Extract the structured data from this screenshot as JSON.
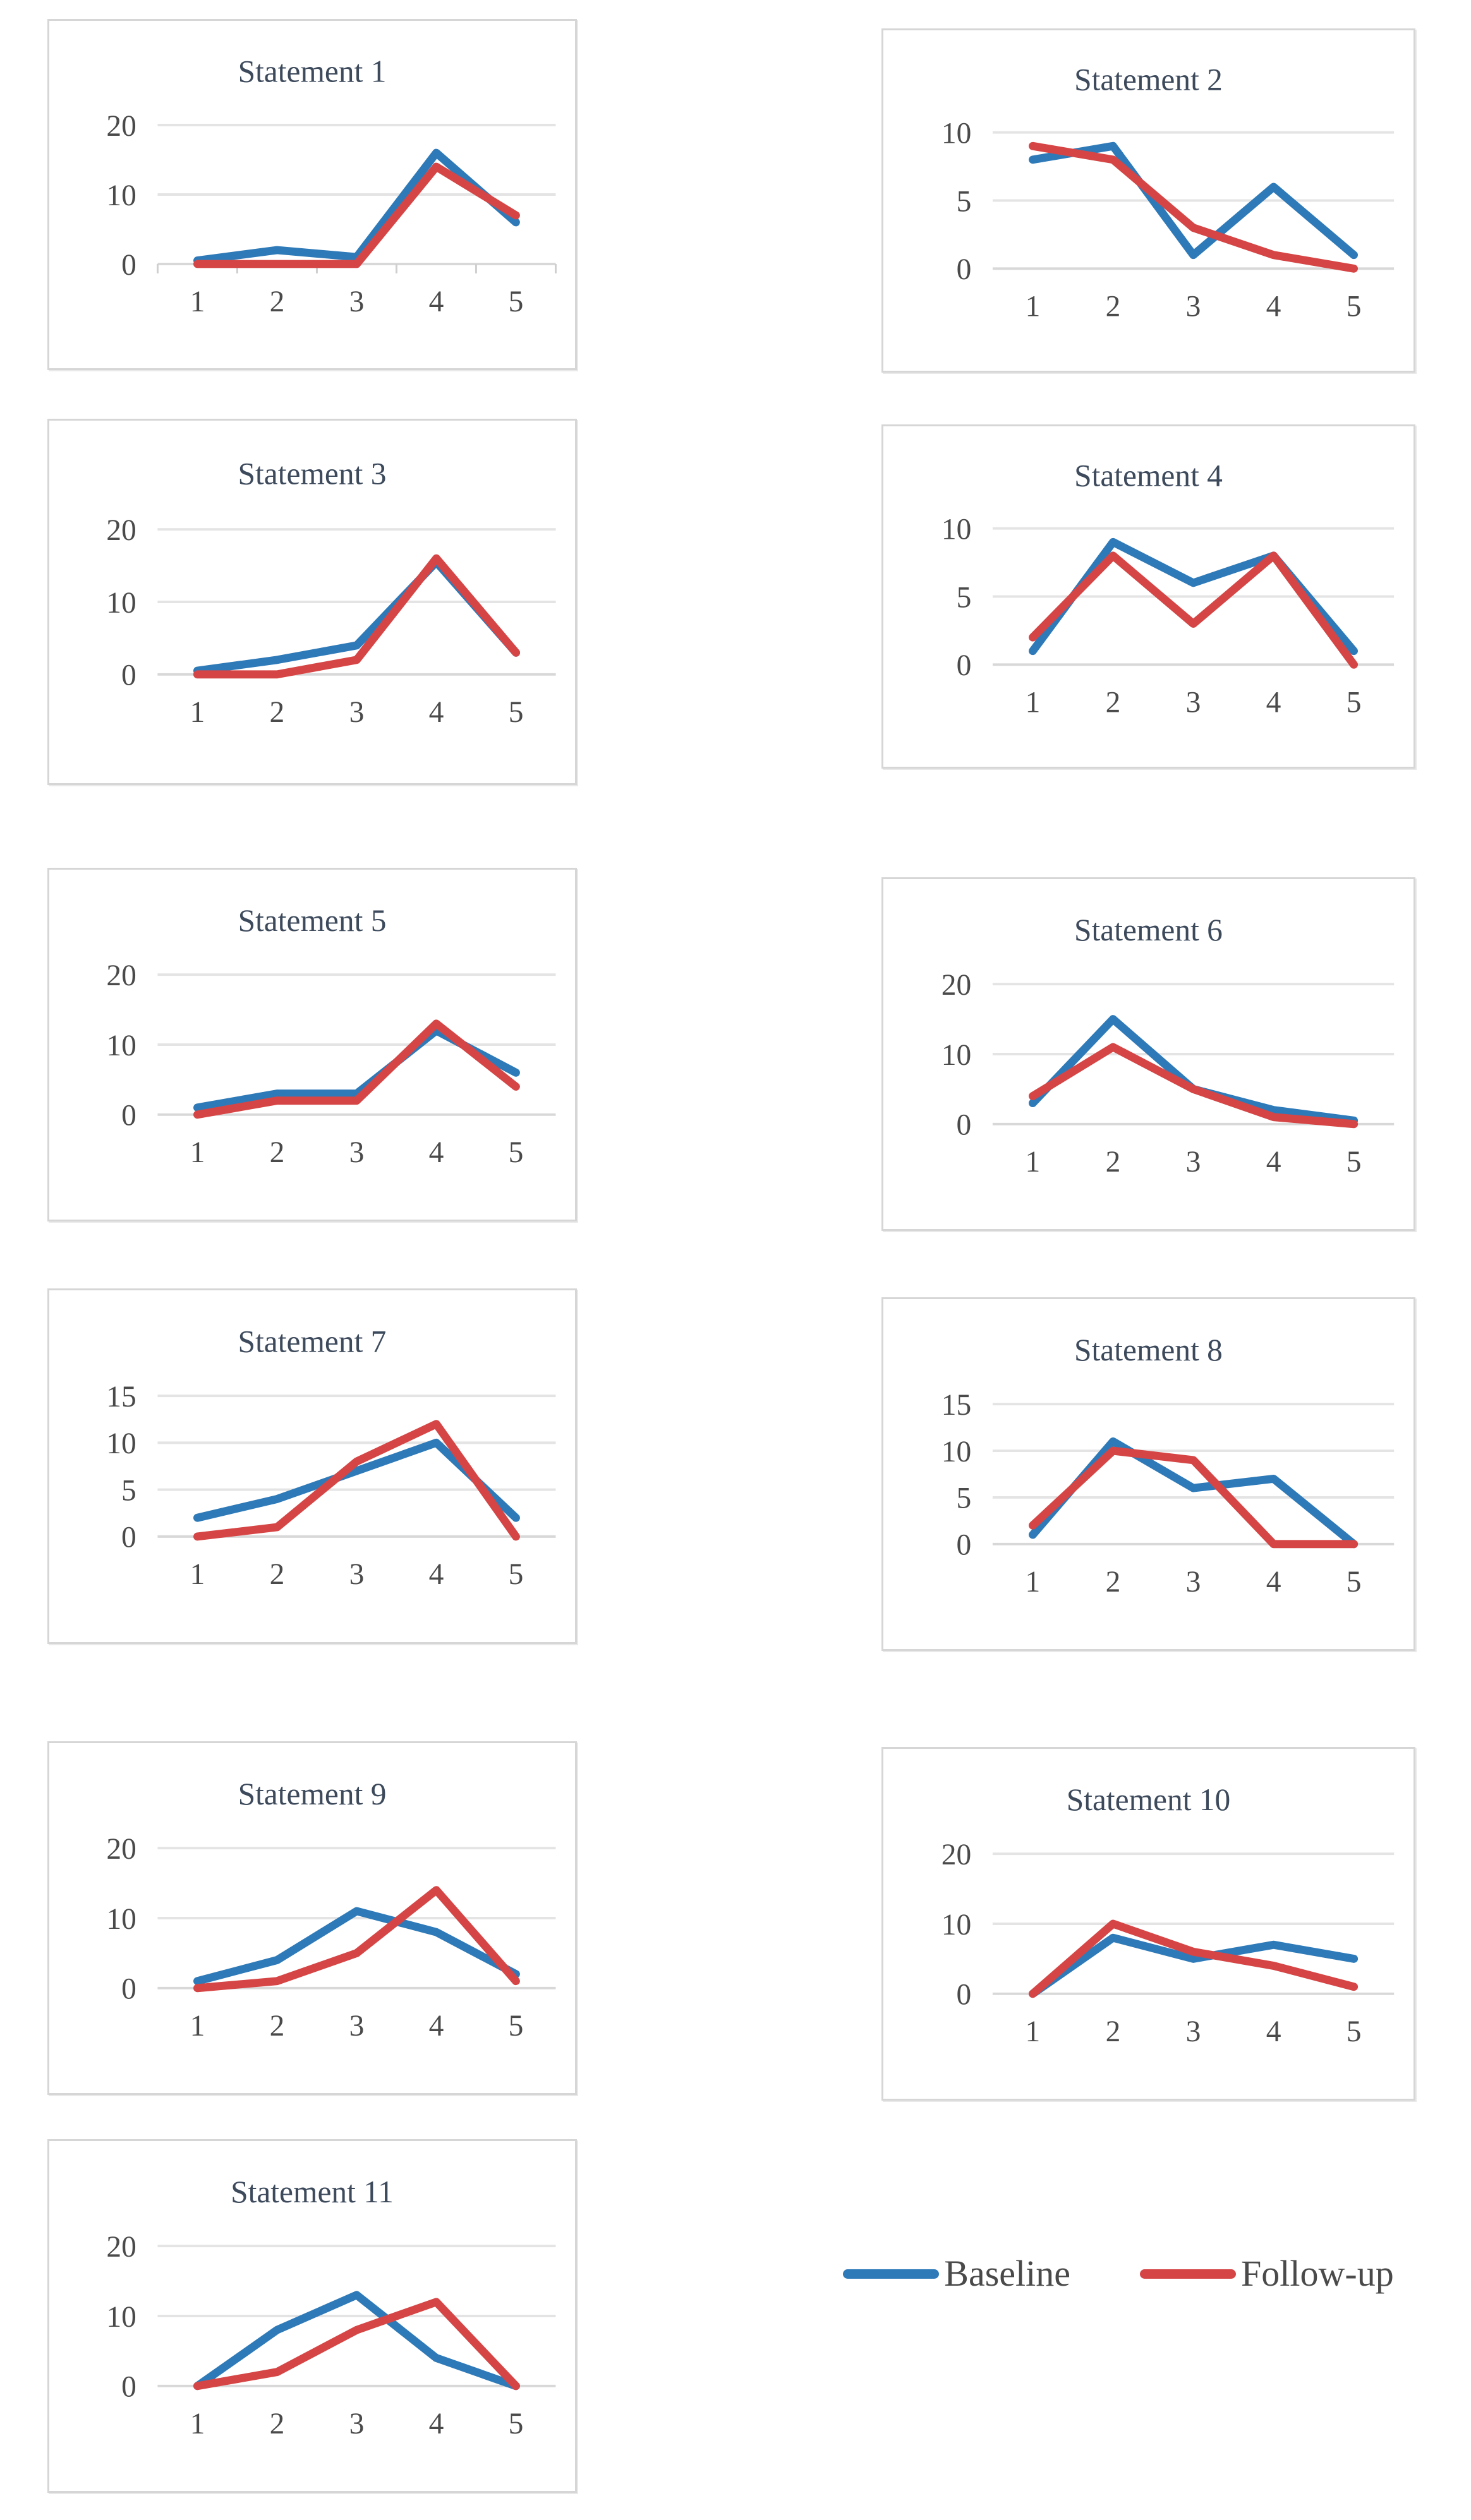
{
  "colors": {
    "baseline": "#2e7ab8",
    "followup": "#d64545",
    "grid": "#e4e4e4",
    "axis": "#d8d8d8",
    "tick_mark": "#cfcfcf",
    "title_text": "#3d4a5c",
    "tick_text": "#4a4a4a",
    "box_border": "#d6d6d6",
    "background": "#ffffff"
  },
  "legend": {
    "position": "bottom-right",
    "items": [
      {
        "label": "Baseline",
        "color_key": "baseline"
      },
      {
        "label": "Follow-up",
        "color_key": "followup"
      }
    ]
  },
  "chart_data": [
    {
      "id": 1,
      "type": "line",
      "title": "Statement 1",
      "x_labels": [
        "1",
        "2",
        "3",
        "4",
        "5"
      ],
      "y_ticks": [
        0,
        10,
        20
      ],
      "y_max": 20,
      "grid": true,
      "x_axis_tick_marks": true,
      "series": [
        {
          "name": "Baseline",
          "color_key": "baseline",
          "values": [
            0.5,
            2,
            1,
            16,
            6
          ]
        },
        {
          "name": "Follow-up",
          "color_key": "followup",
          "values": [
            0,
            0,
            0,
            14,
            7
          ]
        }
      ]
    },
    {
      "id": 2,
      "type": "line",
      "title": "Statement 2",
      "x_labels": [
        "1",
        "2",
        "3",
        "4",
        "5"
      ],
      "y_ticks": [
        0,
        5,
        10
      ],
      "y_max": 10,
      "grid": true,
      "x_axis_tick_marks": false,
      "series": [
        {
          "name": "Baseline",
          "color_key": "baseline",
          "values": [
            8,
            9,
            1,
            6,
            1
          ]
        },
        {
          "name": "Follow-up",
          "color_key": "followup",
          "values": [
            9,
            8,
            3,
            1,
            0
          ]
        }
      ]
    },
    {
      "id": 3,
      "type": "line",
      "title": "Statement 3",
      "x_labels": [
        "1",
        "2",
        "3",
        "4",
        "5"
      ],
      "y_ticks": [
        0,
        10,
        20
      ],
      "y_max": 20,
      "grid": true,
      "x_axis_tick_marks": false,
      "series": [
        {
          "name": "Baseline",
          "color_key": "baseline",
          "values": [
            0.5,
            2,
            4,
            15.5,
            3
          ]
        },
        {
          "name": "Follow-up",
          "color_key": "followup",
          "values": [
            0,
            0,
            2,
            16,
            3
          ]
        }
      ]
    },
    {
      "id": 4,
      "type": "line",
      "title": "Statement 4",
      "x_labels": [
        "1",
        "2",
        "3",
        "4",
        "5"
      ],
      "y_ticks": [
        0,
        5,
        10
      ],
      "y_max": 10,
      "grid": true,
      "x_axis_tick_marks": false,
      "series": [
        {
          "name": "Baseline",
          "color_key": "baseline",
          "values": [
            1,
            9,
            6,
            8,
            1
          ]
        },
        {
          "name": "Follow-up",
          "color_key": "followup",
          "values": [
            2,
            8,
            3,
            8,
            0
          ]
        }
      ]
    },
    {
      "id": 5,
      "type": "line",
      "title": "Statement 5",
      "x_labels": [
        "1",
        "2",
        "3",
        "4",
        "5"
      ],
      "y_ticks": [
        0,
        10,
        20
      ],
      "y_max": 20,
      "grid": true,
      "x_axis_tick_marks": false,
      "series": [
        {
          "name": "Baseline",
          "color_key": "baseline",
          "values": [
            1,
            3,
            3,
            12,
            6
          ]
        },
        {
          "name": "Follow-up",
          "color_key": "followup",
          "values": [
            0,
            2,
            2,
            13,
            4
          ]
        }
      ]
    },
    {
      "id": 6,
      "type": "line",
      "title": "Statement 6",
      "x_labels": [
        "1",
        "2",
        "3",
        "4",
        "5"
      ],
      "y_ticks": [
        0,
        10,
        20
      ],
      "y_max": 20,
      "grid": true,
      "x_axis_tick_marks": false,
      "series": [
        {
          "name": "Baseline",
          "color_key": "baseline",
          "values": [
            3,
            15,
            5,
            2,
            0.5
          ]
        },
        {
          "name": "Follow-up",
          "color_key": "followup",
          "values": [
            4,
            11,
            5,
            1,
            0
          ]
        }
      ]
    },
    {
      "id": 7,
      "type": "line",
      "title": "Statement 7",
      "x_labels": [
        "1",
        "2",
        "3",
        "4",
        "5"
      ],
      "y_ticks": [
        0,
        5,
        10,
        15
      ],
      "y_max": 15,
      "grid": true,
      "x_axis_tick_marks": false,
      "series": [
        {
          "name": "Baseline",
          "color_key": "baseline",
          "values": [
            2,
            4,
            7,
            10,
            2
          ]
        },
        {
          "name": "Follow-up",
          "color_key": "followup",
          "values": [
            0,
            1,
            8,
            12,
            0
          ]
        }
      ]
    },
    {
      "id": 8,
      "type": "line",
      "title": "Statement 8",
      "x_labels": [
        "1",
        "2",
        "3",
        "4",
        "5"
      ],
      "y_ticks": [
        0,
        5,
        10,
        15
      ],
      "y_max": 15,
      "grid": true,
      "x_axis_tick_marks": false,
      "series": [
        {
          "name": "Baseline",
          "color_key": "baseline",
          "values": [
            1,
            11,
            6,
            7,
            0
          ]
        },
        {
          "name": "Follow-up",
          "color_key": "followup",
          "values": [
            2,
            10,
            9,
            0,
            0
          ]
        }
      ]
    },
    {
      "id": 9,
      "type": "line",
      "title": "Statement 9",
      "x_labels": [
        "1",
        "2",
        "3",
        "4",
        "5"
      ],
      "y_ticks": [
        0,
        10,
        20
      ],
      "y_max": 20,
      "grid": true,
      "x_axis_tick_marks": false,
      "series": [
        {
          "name": "Baseline",
          "color_key": "baseline",
          "values": [
            1,
            4,
            11,
            8,
            2
          ]
        },
        {
          "name": "Follow-up",
          "color_key": "followup",
          "values": [
            0,
            1,
            5,
            14,
            1
          ]
        }
      ]
    },
    {
      "id": 10,
      "type": "line",
      "title": "Statement 10",
      "x_labels": [
        "1",
        "2",
        "3",
        "4",
        "5"
      ],
      "y_ticks": [
        0,
        10,
        20
      ],
      "y_max": 20,
      "grid": true,
      "x_axis_tick_marks": false,
      "series": [
        {
          "name": "Baseline",
          "color_key": "baseline",
          "values": [
            0,
            8,
            5,
            7,
            5
          ]
        },
        {
          "name": "Follow-up",
          "color_key": "followup",
          "values": [
            0,
            10,
            6,
            4,
            1
          ]
        }
      ]
    },
    {
      "id": 11,
      "type": "line",
      "title": "Statement 11",
      "x_labels": [
        "1",
        "2",
        "3",
        "4",
        "5"
      ],
      "y_ticks": [
        0,
        10,
        20
      ],
      "y_max": 20,
      "grid": true,
      "x_axis_tick_marks": false,
      "series": [
        {
          "name": "Baseline",
          "color_key": "baseline",
          "values": [
            0,
            8,
            13,
            4,
            0
          ]
        },
        {
          "name": "Follow-up",
          "color_key": "followup",
          "values": [
            0,
            2,
            8,
            12,
            0
          ]
        }
      ]
    }
  ]
}
